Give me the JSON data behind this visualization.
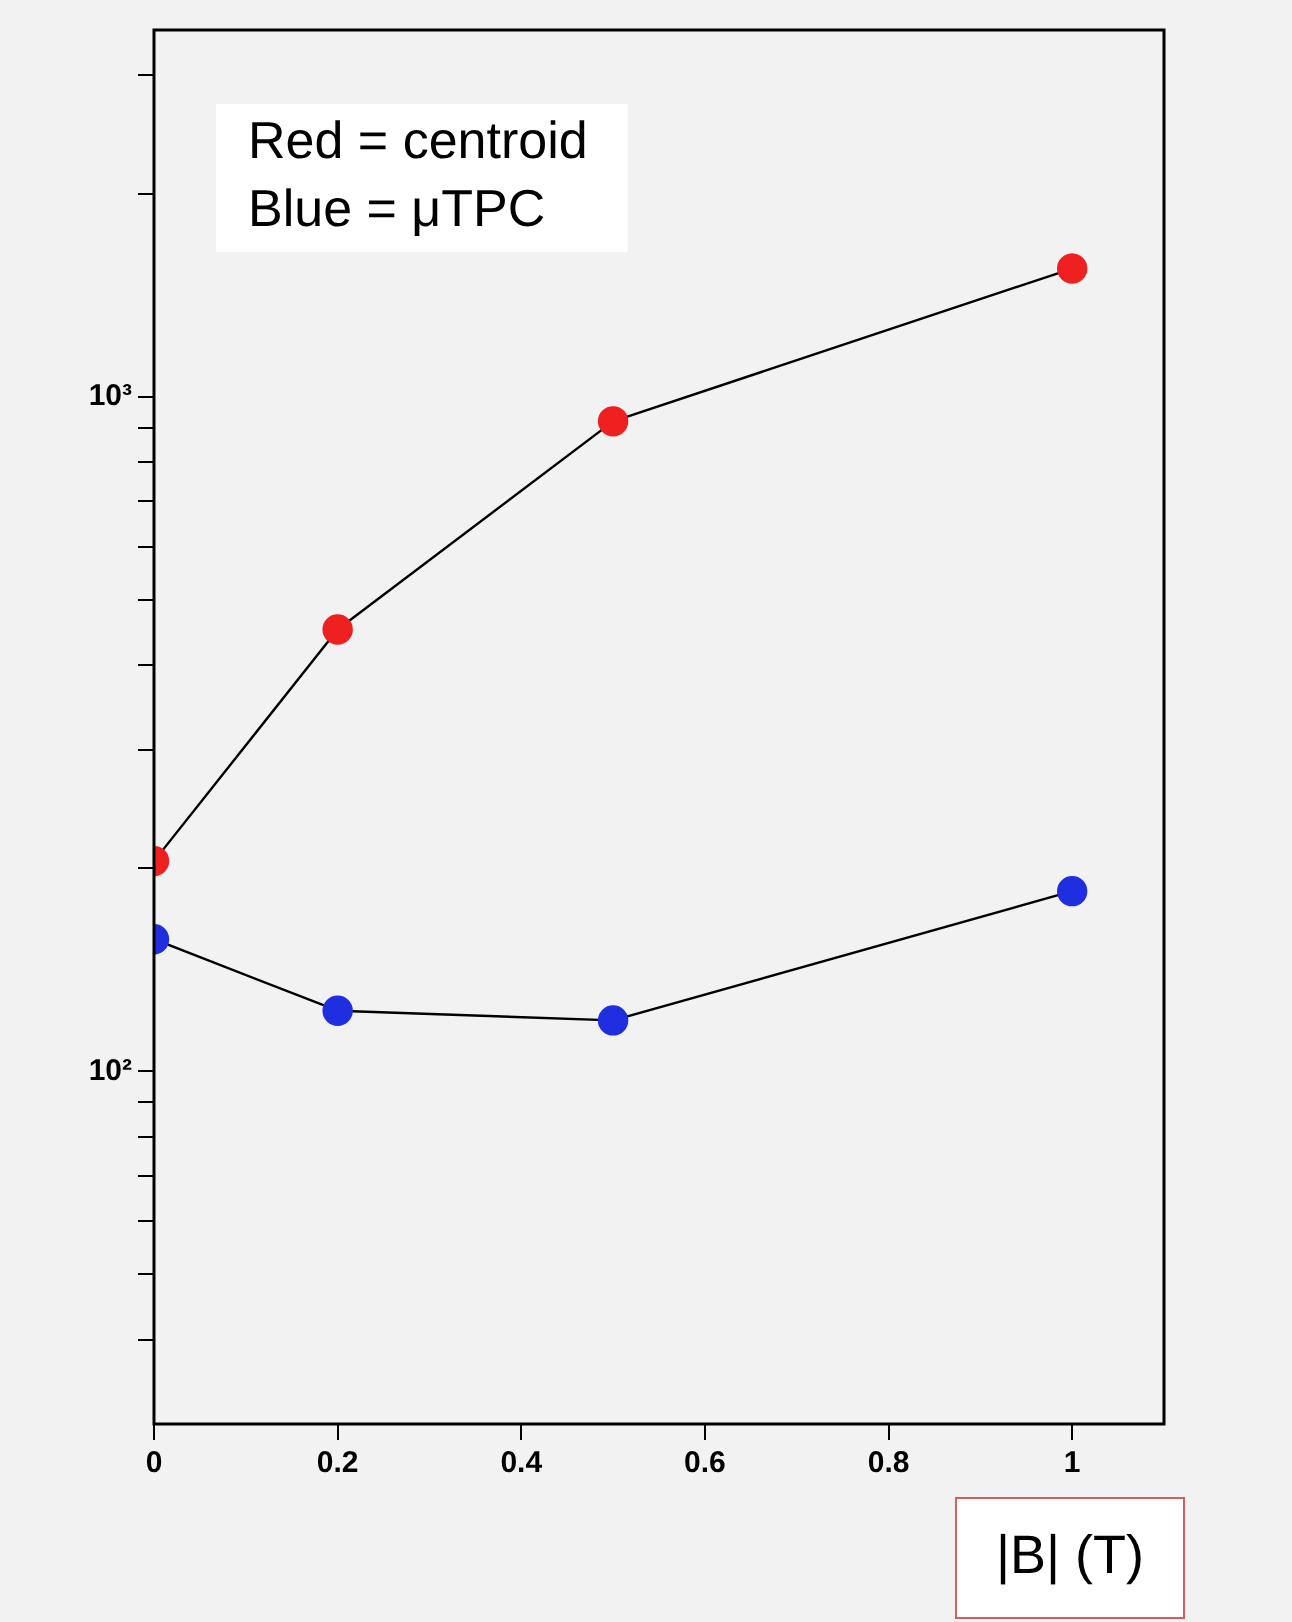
{
  "chart_data": {
    "type": "line",
    "xlabel": "|B| (T)",
    "annotations": [
      "Red = centroid",
      "Blue = μTPC"
    ],
    "x": [
      0,
      0.2,
      0.5,
      1
    ],
    "series": [
      {
        "color": "#ee2020",
        "values": [
          205,
          452,
          920,
          1550
        ]
      },
      {
        "color": "#1f2fe0",
        "values": [
          157,
          123,
          119,
          185
        ]
      }
    ],
    "log": "y",
    "xlim": [
      0,
      1.1
    ],
    "ylim": [
      30,
      3500
    ],
    "xticks": [
      0,
      0.2,
      0.4,
      0.6,
      0.8,
      1
    ],
    "yticks": [
      {
        "value": 40,
        "label": null
      },
      {
        "value": 50,
        "label": null
      },
      {
        "value": 60,
        "label": null
      },
      {
        "value": 70,
        "label": null
      },
      {
        "value": 80,
        "label": null
      },
      {
        "value": 90,
        "label": null
      },
      {
        "value": 100,
        "label": "10²"
      },
      {
        "value": 200,
        "label": null
      },
      {
        "value": 300,
        "label": null
      },
      {
        "value": 400,
        "label": null
      },
      {
        "value": 500,
        "label": null
      },
      {
        "value": 600,
        "label": null
      },
      {
        "value": 700,
        "label": null
      },
      {
        "value": 800,
        "label": null
      },
      {
        "value": 900,
        "label": null
      },
      {
        "value": 1000,
        "label": "10³"
      },
      {
        "value": 2000,
        "label": null
      },
      {
        "value": 3000,
        "label": null
      }
    ],
    "grid": false,
    "legend": false,
    "marker": "circle",
    "line_style": "solid"
  }
}
